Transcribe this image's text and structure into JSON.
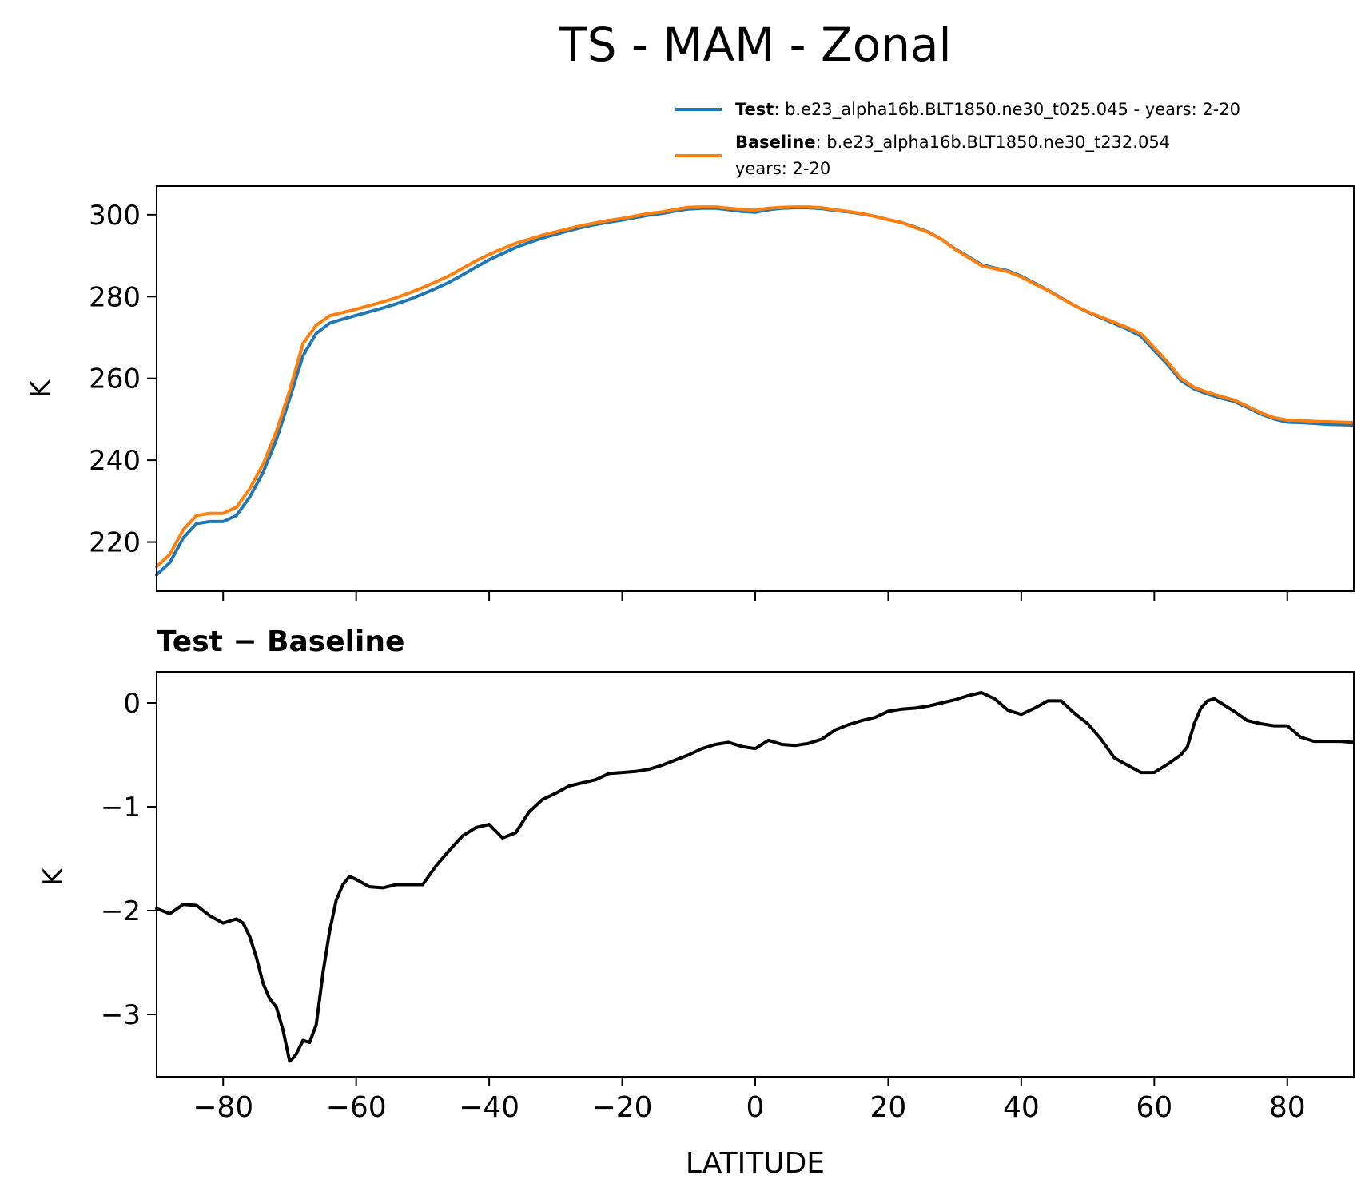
{
  "figure": {
    "title": "TS - MAM - Zonal"
  },
  "legend": {
    "placement": "upper-right",
    "test": {
      "bold": "Test",
      "text": ": b.e23_alpha16b.BLT1850.ne30_t025.045 - years: 2-20"
    },
    "baseline": {
      "bold": "Baseline",
      "text": ": b.e23_alpha16b.BLT1850.ne30_t232.054",
      "text2": "years: 2-20"
    }
  },
  "colors": {
    "test": "#1f77b4",
    "baseline": "#ff7f0e",
    "difference": "#000000"
  },
  "chart_data": [
    {
      "type": "line",
      "panel": "top",
      "ylabel": "K",
      "xlim": [
        -90,
        90
      ],
      "ylim": [
        208,
        307
      ],
      "yticks": [
        220,
        240,
        260,
        280,
        300
      ],
      "ytick_labels": [
        "220",
        "240",
        "260",
        "280",
        "300"
      ],
      "xticks": [
        -80,
        -60,
        -40,
        -20,
        0,
        20,
        40,
        60,
        80
      ],
      "x": [
        -90,
        -88,
        -86,
        -84,
        -82,
        -80,
        -78,
        -76,
        -74,
        -72,
        -70,
        -68,
        -66,
        -64,
        -62,
        -60,
        -58,
        -56,
        -54,
        -52,
        -50,
        -48,
        -46,
        -44,
        -42,
        -40,
        -38,
        -36,
        -34,
        -32,
        -30,
        -28,
        -26,
        -24,
        -22,
        -20,
        -18,
        -16,
        -14,
        -12,
        -10,
        -8,
        -6,
        -4,
        -2,
        0,
        2,
        4,
        6,
        8,
        10,
        12,
        14,
        16,
        18,
        20,
        22,
        24,
        26,
        28,
        30,
        32,
        34,
        36,
        38,
        40,
        42,
        44,
        46,
        48,
        50,
        52,
        54,
        56,
        58,
        60,
        62,
        64,
        66,
        68,
        70,
        72,
        74,
        76,
        78,
        80,
        82,
        84,
        86,
        88,
        90
      ],
      "series": [
        {
          "name": "Test",
          "values": [
            212,
            215,
            221,
            224.5,
            225,
            225,
            226.5,
            231,
            237,
            245,
            255,
            265.5,
            271,
            273.5,
            274.5,
            275.4,
            276.3,
            277.2,
            278.2,
            279.3,
            280.6,
            282,
            283.5,
            285.3,
            287.2,
            289,
            290.5,
            292,
            293.2,
            294.3,
            295.2,
            296.1,
            296.9,
            297.6,
            298.2,
            298.7,
            299.3,
            299.9,
            300.3,
            300.9,
            301.4,
            301.6,
            301.6,
            301.2,
            300.8,
            300.6,
            301.2,
            301.6,
            301.7,
            301.7,
            301.5,
            301,
            300.7,
            300.2,
            299.6,
            298.8,
            298.1,
            297,
            295.8,
            294,
            291.7,
            289.8,
            287.8,
            287,
            286.3,
            285,
            283.3,
            281.6,
            279.7,
            277.8,
            276.2,
            274.8,
            273.4,
            272,
            270.3,
            266.8,
            263.4,
            259.5,
            257.4,
            256.2,
            255.2,
            254.4,
            252.9,
            251.3,
            250.1,
            249.3,
            249.2,
            249,
            248.8,
            248.7,
            248.6
          ]
        },
        {
          "name": "Baseline",
          "values": [
            214,
            217,
            223,
            226.5,
            227,
            227,
            228.5,
            233,
            239,
            247,
            257,
            268.5,
            273,
            275.3,
            276.1,
            276.9,
            277.8,
            278.7,
            279.7,
            280.9,
            282.2,
            283.6,
            285.1,
            286.9,
            288.7,
            290.3,
            291.7,
            293,
            294,
            295,
            295.8,
            296.6,
            297.4,
            298,
            298.6,
            299.1,
            299.7,
            300.3,
            300.7,
            301.3,
            301.8,
            301.9,
            301.9,
            301.6,
            301.3,
            301.1,
            301.6,
            301.8,
            301.9,
            301.9,
            301.7,
            301.2,
            300.8,
            300.3,
            299.6,
            298.8,
            298.1,
            296.9,
            295.7,
            294,
            291.6,
            289.6,
            287.6,
            286.8,
            286.1,
            284.8,
            283.1,
            281.5,
            279.6,
            277.8,
            276.3,
            275,
            273.7,
            272.4,
            270.9,
            267.5,
            264,
            260,
            257.8,
            256.6,
            255.6,
            254.7,
            253.2,
            251.6,
            250.4,
            249.8,
            249.7,
            249.5,
            249.4,
            249.3,
            249.2
          ]
        }
      ]
    },
    {
      "type": "line",
      "panel": "bottom",
      "title": "Test − Baseline",
      "xlabel": "LATITUDE",
      "ylabel": "K",
      "xlim": [
        -90,
        90
      ],
      "ylim": [
        -3.6,
        0.3
      ],
      "yticks": [
        -3,
        -2,
        -1,
        0
      ],
      "ytick_labels": [
        "−3",
        "−2",
        "−1",
        "0"
      ],
      "xticks": [
        -80,
        -60,
        -40,
        -20,
        0,
        20,
        40,
        60,
        80
      ],
      "xtick_labels": [
        "−80",
        "−60",
        "−40",
        "−20",
        "0",
        "20",
        "40",
        "60",
        "80"
      ],
      "x": [
        -90,
        -88,
        -86,
        -84,
        -82,
        -80,
        -78,
        -77,
        -76,
        -75,
        -74,
        -73,
        -72,
        -71,
        -70,
        -69.5,
        -69,
        -68,
        -67,
        -66,
        -65,
        -64,
        -63,
        -62,
        -61,
        -60,
        -58,
        -56,
        -54,
        -52,
        -50,
        -48,
        -46,
        -44,
        -42,
        -40,
        -38,
        -36,
        -34,
        -32,
        -30,
        -28,
        -26,
        -24,
        -22,
        -20,
        -18,
        -16,
        -14,
        -12,
        -10,
        -8,
        -6,
        -4,
        -2,
        0,
        2,
        4,
        6,
        8,
        10,
        12,
        14,
        16,
        18,
        20,
        22,
        24,
        26,
        28,
        30,
        32,
        34,
        36,
        38,
        40,
        42,
        44,
        46,
        48,
        50,
        52,
        54,
        56,
        58,
        60,
        62,
        64,
        65,
        66,
        67,
        68,
        69,
        70,
        72,
        74,
        76,
        78,
        80,
        82,
        84,
        86,
        88,
        90
      ],
      "series": [
        {
          "name": "Test − Baseline",
          "values": [
            -1.98,
            -2.03,
            -1.94,
            -1.95,
            -2.05,
            -2.12,
            -2.08,
            -2.12,
            -2.25,
            -2.45,
            -2.7,
            -2.85,
            -2.93,
            -3.15,
            -3.45,
            -3.42,
            -3.38,
            -3.25,
            -3.27,
            -3.1,
            -2.6,
            -2.2,
            -1.9,
            -1.75,
            -1.67,
            -1.7,
            -1.77,
            -1.78,
            -1.75,
            -1.75,
            -1.75,
            -1.57,
            -1.42,
            -1.28,
            -1.2,
            -1.17,
            -1.3,
            -1.25,
            -1.05,
            -0.93,
            -0.87,
            -0.8,
            -0.77,
            -0.74,
            -0.68,
            -0.67,
            -0.66,
            -0.64,
            -0.6,
            -0.55,
            -0.5,
            -0.44,
            -0.4,
            -0.38,
            -0.42,
            -0.44,
            -0.36,
            -0.4,
            -0.41,
            -0.39,
            -0.35,
            -0.26,
            -0.21,
            -0.17,
            -0.14,
            -0.08,
            -0.06,
            -0.05,
            -0.03,
            0.0,
            0.03,
            0.07,
            0.1,
            0.04,
            -0.07,
            -0.11,
            -0.05,
            0.02,
            0.02,
            -0.1,
            -0.2,
            -0.35,
            -0.53,
            -0.6,
            -0.67,
            -0.67,
            -0.59,
            -0.5,
            -0.42,
            -0.2,
            -0.05,
            0.02,
            0.04,
            0.0,
            -0.08,
            -0.17,
            -0.2,
            -0.22,
            -0.22,
            -0.33,
            -0.37,
            -0.37,
            -0.37,
            -0.38
          ]
        }
      ]
    }
  ]
}
